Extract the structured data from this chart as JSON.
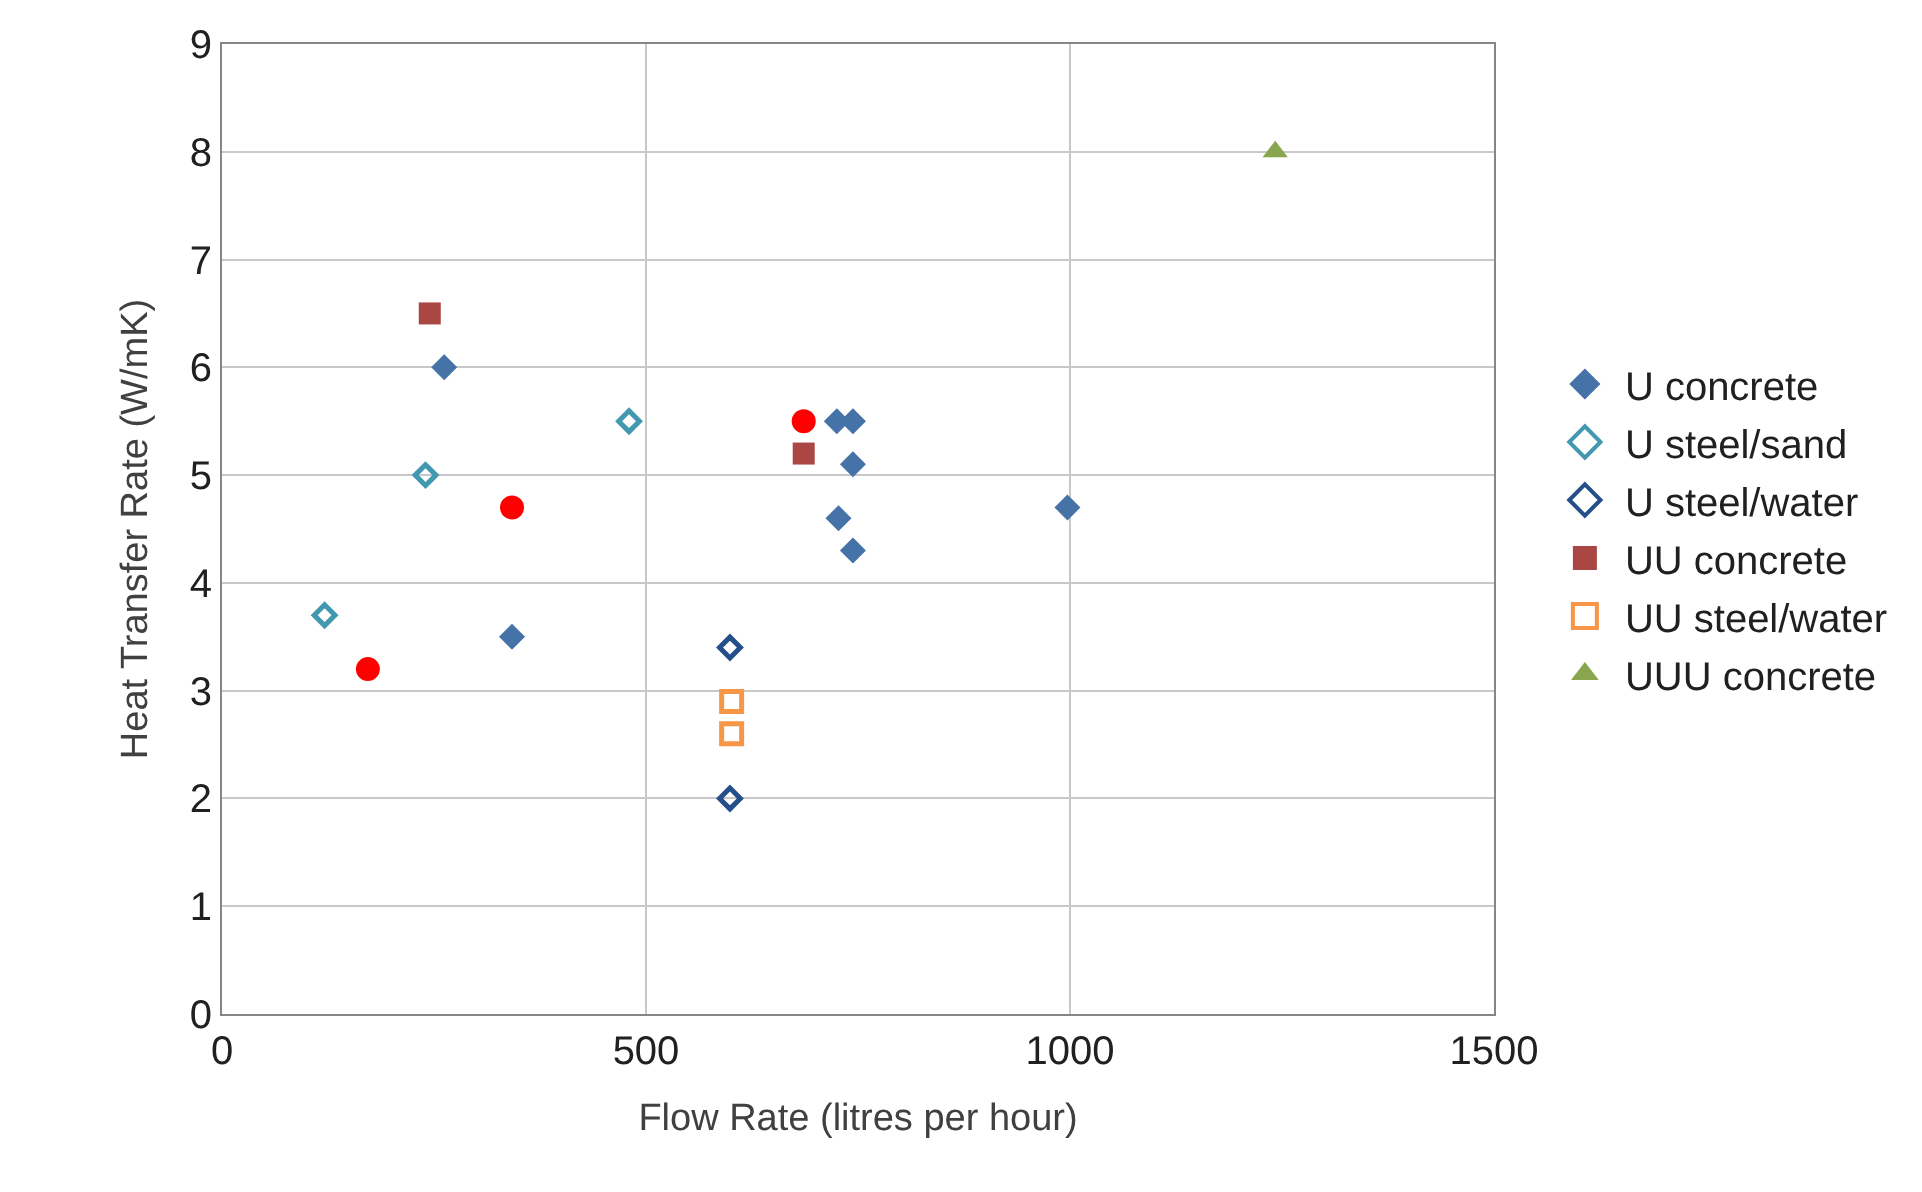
{
  "chart_data": {
    "type": "scatter",
    "xlabel": "Flow Rate (litres per hour)",
    "ylabel": "Heat Transfer Rate (W/mK)",
    "xlim": [
      0,
      1500
    ],
    "xticks": [
      0,
      500,
      1000,
      1500
    ],
    "ylim": [
      0,
      9
    ],
    "yticks": [
      0,
      1,
      2,
      3,
      4,
      5,
      6,
      7,
      8,
      9
    ],
    "grid": true,
    "legend": "right",
    "series": [
      {
        "name": "U concrete",
        "color": "#4572a7",
        "marker": "diamond",
        "x": [
          262,
          725,
          744,
          744,
          727,
          744,
          997,
          342
        ],
        "values": [
          6.0,
          5.5,
          5.5,
          5.1,
          4.6,
          4.3,
          4.7,
          3.5
        ]
      },
      {
        "name": "U steel/sand",
        "color": "#4198af",
        "marker": "diamond-open",
        "x": [
          480,
          240,
          121
        ],
        "values": [
          5.5,
          5.0,
          3.7
        ]
      },
      {
        "name": "U steel/water",
        "color": "#254f8a",
        "marker": "diamond-open",
        "x": [
          599,
          599
        ],
        "values": [
          3.4,
          2.0
        ]
      },
      {
        "name": "UU concrete",
        "color": "#aa4643",
        "marker": "square",
        "x": [
          245,
          686
        ],
        "values": [
          6.5,
          5.2
        ]
      },
      {
        "name": "UU steel/water",
        "color": "#f79646",
        "marker": "square-open",
        "x": [
          601,
          601
        ],
        "values": [
          2.9,
          2.6
        ]
      },
      {
        "name": "UUU concrete",
        "color": "#89a54e",
        "marker": "triangle",
        "x": [
          1242
        ],
        "values": [
          8.0
        ]
      },
      {
        "color": "#ff0000",
        "marker": "circle",
        "x": [
          172,
          342,
          686
        ],
        "values": [
          3.2,
          4.7,
          5.5
        ]
      }
    ]
  }
}
